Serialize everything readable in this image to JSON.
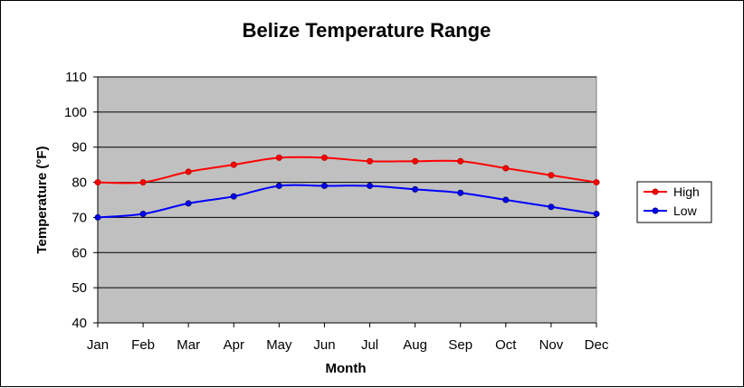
{
  "chart_data": {
    "type": "line",
    "title": "Belize Temperature Range",
    "xlabel": "Month",
    "ylabel": "Temperature (°F)",
    "categories": [
      "Jan",
      "Feb",
      "Mar",
      "Apr",
      "May",
      "Jun",
      "Jul",
      "Aug",
      "Sep",
      "Oct",
      "Nov",
      "Dec"
    ],
    "ylim": [
      40,
      110
    ],
    "yticks": [
      40,
      50,
      60,
      70,
      80,
      90,
      100,
      110
    ],
    "grid": true,
    "legend_position": "right",
    "plot_background": "#c0c0c0",
    "series": [
      {
        "name": "High",
        "color": "#ff0000",
        "marker_color": "#c00000",
        "values": [
          80,
          80,
          83,
          85,
          87,
          87,
          86,
          86,
          86,
          84,
          82,
          80
        ]
      },
      {
        "name": "Low",
        "color": "#0000ff",
        "marker_color": "#000080",
        "values": [
          70,
          71,
          74,
          76,
          79,
          79,
          79,
          78,
          77,
          75,
          73,
          71
        ]
      }
    ]
  }
}
